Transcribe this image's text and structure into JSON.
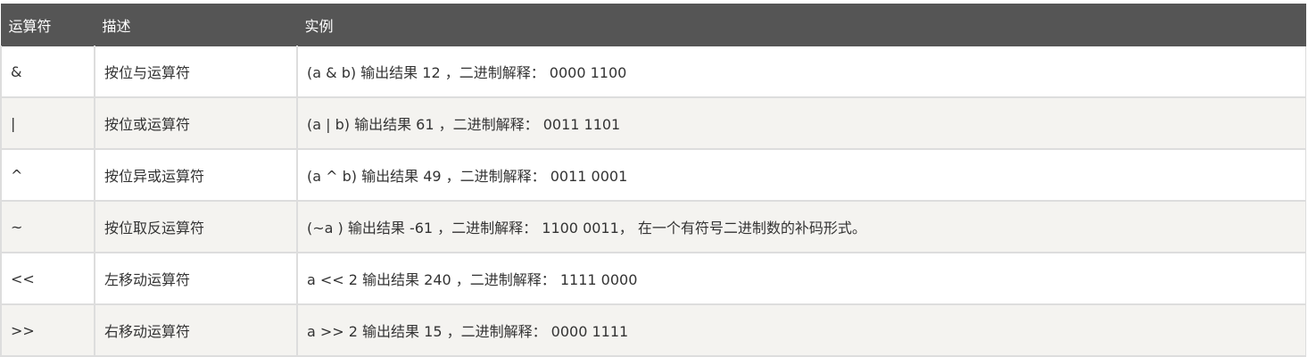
{
  "table": {
    "headers": [
      "运算符",
      "描述",
      "实例"
    ],
    "rows": [
      {
        "op": "&",
        "desc": "按位与运算符",
        "example": "(a & b) 输出结果 12 ，二进制解释： 0000 1100"
      },
      {
        "op": "|",
        "desc": "按位或运算符",
        "example": "(a | b) 输出结果 61 ，二进制解释： 0011 1101"
      },
      {
        "op": "^",
        "desc": "按位异或运算符",
        "example": "(a ^ b) 输出结果 49 ，二进制解释： 0011 0001"
      },
      {
        "op": "~",
        "desc": "按位取反运算符",
        "example": "(~a ) 输出结果 -61 ，二进制解释： 1100 0011， 在一个有符号二进制数的补码形式。"
      },
      {
        "op": "<<",
        "desc": "左移动运算符",
        "example": "a << 2 输出结果 240 ，二进制解释： 1111 0000"
      },
      {
        "op": ">>",
        "desc": "右移动运算符",
        "example": "a >> 2 输出结果 15 ，二进制解释： 0000 1111"
      }
    ]
  }
}
